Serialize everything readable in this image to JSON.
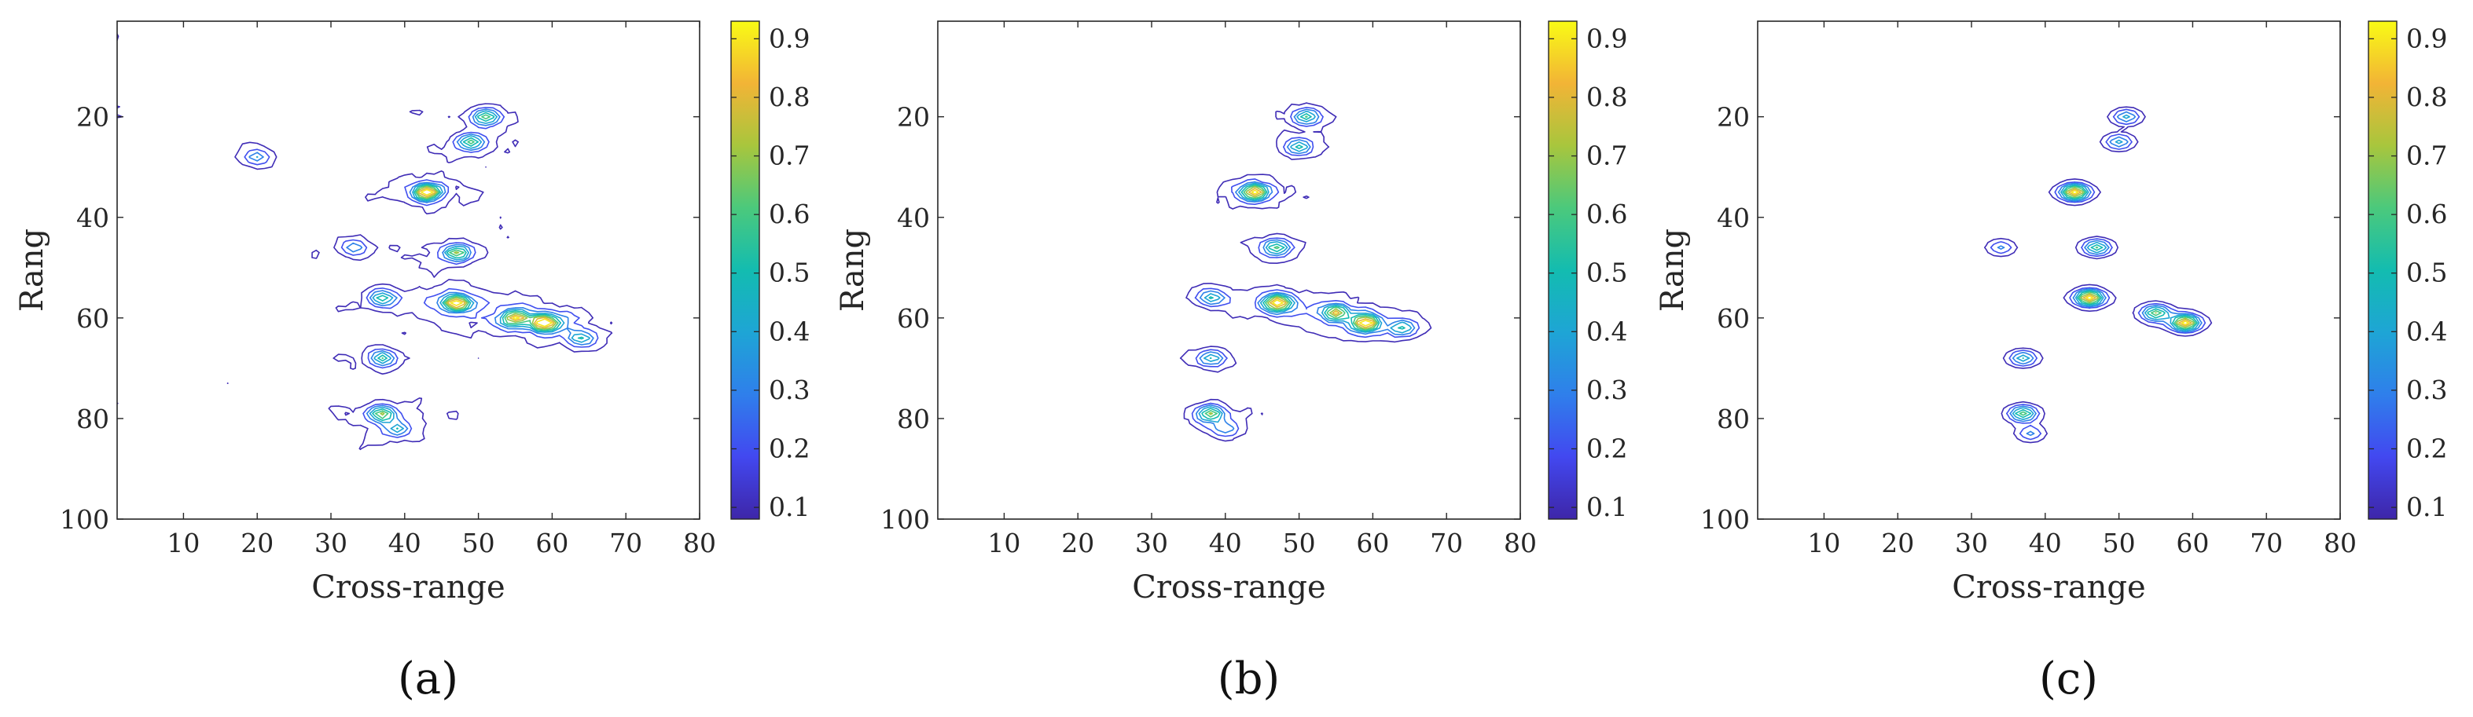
{
  "chart_data": [
    {
      "type": "contour",
      "panel": "(a)",
      "xlabel": "Cross-range",
      "ylabel": "Rang",
      "xlim": [
        1,
        80
      ],
      "ylim": [
        1,
        100
      ],
      "y_reversed": true,
      "xticks": [
        10,
        20,
        30,
        40,
        50,
        60,
        70,
        80
      ],
      "yticks": [
        20,
        40,
        60,
        80,
        100
      ],
      "colorbar": {
        "ticks": [
          0.1,
          0.2,
          0.3,
          0.4,
          0.5,
          0.6,
          0.7,
          0.8,
          0.9
        ],
        "range": [
          0.08,
          0.93
        ],
        "colormap": "parula"
      },
      "contour_levels": [
        0.1,
        0.2,
        0.3,
        0.4,
        0.5,
        0.6,
        0.7,
        0.8,
        0.9
      ],
      "noise_level": "high",
      "peaks": [
        {
          "x": 43,
          "y": 35,
          "v": 0.92
        },
        {
          "x": 47,
          "y": 57,
          "v": 0.88
        },
        {
          "x": 59,
          "y": 61,
          "v": 0.86
        },
        {
          "x": 55,
          "y": 60,
          "v": 0.7
        },
        {
          "x": 51,
          "y": 20,
          "v": 0.55
        },
        {
          "x": 49,
          "y": 25,
          "v": 0.5
        },
        {
          "x": 47,
          "y": 47,
          "v": 0.62
        },
        {
          "x": 37,
          "y": 56,
          "v": 0.45
        },
        {
          "x": 37,
          "y": 68,
          "v": 0.5
        },
        {
          "x": 37,
          "y": 79,
          "v": 0.6
        },
        {
          "x": 39,
          "y": 82,
          "v": 0.35
        },
        {
          "x": 20,
          "y": 28,
          "v": 0.3
        },
        {
          "x": 33,
          "y": 46,
          "v": 0.3
        },
        {
          "x": 64,
          "y": 64,
          "v": 0.4
        }
      ]
    },
    {
      "type": "contour",
      "panel": "(b)",
      "xlabel": "Cross-range",
      "ylabel": "Rang",
      "xlim": [
        1,
        80
      ],
      "ylim": [
        1,
        100
      ],
      "y_reversed": true,
      "xticks": [
        10,
        20,
        30,
        40,
        50,
        60,
        70,
        80
      ],
      "yticks": [
        20,
        40,
        60,
        80,
        100
      ],
      "colorbar": {
        "ticks": [
          0.1,
          0.2,
          0.3,
          0.4,
          0.5,
          0.6,
          0.7,
          0.8,
          0.9
        ],
        "range": [
          0.08,
          0.93
        ],
        "colormap": "parula"
      },
      "contour_levels": [
        0.1,
        0.2,
        0.3,
        0.4,
        0.5,
        0.6,
        0.7,
        0.8,
        0.9
      ],
      "noise_level": "medium",
      "peaks": [
        {
          "x": 44,
          "y": 35,
          "v": 0.9
        },
        {
          "x": 47,
          "y": 57,
          "v": 0.9
        },
        {
          "x": 59,
          "y": 61,
          "v": 0.85
        },
        {
          "x": 55,
          "y": 59,
          "v": 0.65
        },
        {
          "x": 51,
          "y": 20,
          "v": 0.5
        },
        {
          "x": 50,
          "y": 26,
          "v": 0.45
        },
        {
          "x": 47,
          "y": 46,
          "v": 0.55
        },
        {
          "x": 38,
          "y": 56,
          "v": 0.4
        },
        {
          "x": 38,
          "y": 68,
          "v": 0.45
        },
        {
          "x": 38,
          "y": 79,
          "v": 0.6
        },
        {
          "x": 40,
          "y": 82,
          "v": 0.3
        },
        {
          "x": 64,
          "y": 62,
          "v": 0.4
        }
      ]
    },
    {
      "type": "contour",
      "panel": "(c)",
      "xlabel": "Cross-range",
      "ylabel": "Rang",
      "xlim": [
        1,
        80
      ],
      "ylim": [
        1,
        100
      ],
      "y_reversed": true,
      "xticks": [
        10,
        20,
        30,
        40,
        50,
        60,
        70,
        80
      ],
      "yticks": [
        20,
        40,
        60,
        80,
        100
      ],
      "colorbar": {
        "ticks": [
          0.1,
          0.2,
          0.3,
          0.4,
          0.5,
          0.6,
          0.7,
          0.8,
          0.9
        ],
        "range": [
          0.08,
          0.93
        ],
        "colormap": "parula"
      },
      "contour_levels": [
        0.1,
        0.2,
        0.3,
        0.4,
        0.5,
        0.6,
        0.7,
        0.8,
        0.9
      ],
      "noise_level": "none",
      "peaks": [
        {
          "x": 44,
          "y": 35,
          "v": 0.9
        },
        {
          "x": 46,
          "y": 56,
          "v": 0.9
        },
        {
          "x": 59,
          "y": 61,
          "v": 0.88
        },
        {
          "x": 55,
          "y": 59,
          "v": 0.6
        },
        {
          "x": 51,
          "y": 20,
          "v": 0.4
        },
        {
          "x": 50,
          "y": 25,
          "v": 0.4
        },
        {
          "x": 47,
          "y": 46,
          "v": 0.55
        },
        {
          "x": 34,
          "y": 46,
          "v": 0.3
        },
        {
          "x": 37,
          "y": 68,
          "v": 0.45
        },
        {
          "x": 37,
          "y": 79,
          "v": 0.6
        },
        {
          "x": 38,
          "y": 83,
          "v": 0.3
        }
      ]
    }
  ]
}
